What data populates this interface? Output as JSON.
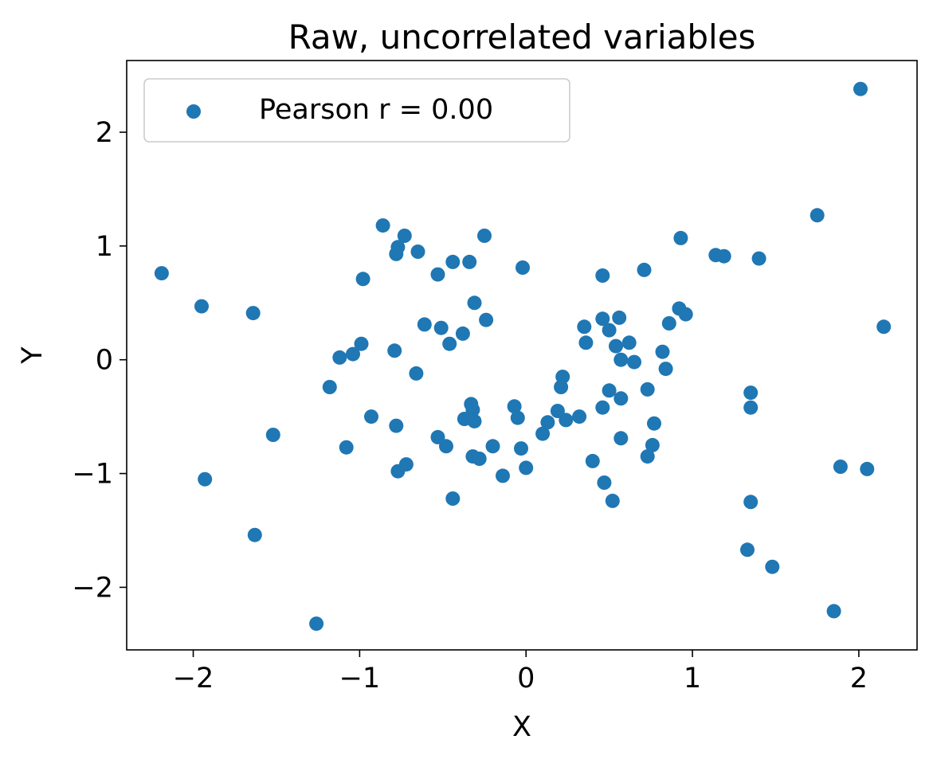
{
  "chart_data": {
    "type": "scatter",
    "title": "Raw, uncorrelated variables",
    "xlabel": "X",
    "ylabel": "Y",
    "xlim": [
      -2.4,
      2.35
    ],
    "ylim": [
      -2.55,
      2.63
    ],
    "xticks": [
      -2,
      -1,
      0,
      1,
      2
    ],
    "yticks": [
      -2,
      -1,
      0,
      1,
      2
    ],
    "xtick_labels": [
      "−2",
      "−1",
      "0",
      "1",
      "2"
    ],
    "ytick_labels": [
      "−2",
      "−1",
      "0",
      "1",
      "2"
    ],
    "grid": false,
    "legend_position": "top-left",
    "series": [
      {
        "name": "Pearson r = 0.00",
        "color": "#1f77b4",
        "points": [
          [
            2.01,
            2.38
          ],
          [
            1.75,
            1.27
          ],
          [
            -2.19,
            0.76
          ],
          [
            -1.95,
            0.47
          ],
          [
            -1.64,
            0.41
          ],
          [
            -1.93,
            -1.05
          ],
          [
            -1.52,
            -0.66
          ],
          [
            -1.63,
            -1.54
          ],
          [
            -1.26,
            -2.32
          ],
          [
            -0.86,
            1.18
          ],
          [
            -0.73,
            1.09
          ],
          [
            -0.77,
            0.99
          ],
          [
            -0.78,
            0.93
          ],
          [
            -0.65,
            0.95
          ],
          [
            -0.25,
            1.09
          ],
          [
            -0.44,
            0.86
          ],
          [
            -0.34,
            0.86
          ],
          [
            -0.53,
            0.75
          ],
          [
            -0.98,
            0.71
          ],
          [
            -0.02,
            0.81
          ],
          [
            -0.31,
            0.5
          ],
          [
            -0.24,
            0.35
          ],
          [
            -0.61,
            0.31
          ],
          [
            -0.51,
            0.28
          ],
          [
            -0.38,
            0.23
          ],
          [
            -0.46,
            0.14
          ],
          [
            -0.99,
            0.14
          ],
          [
            -1.04,
            0.05
          ],
          [
            -1.12,
            0.02
          ],
          [
            -0.79,
            0.08
          ],
          [
            -0.66,
            -0.12
          ],
          [
            -1.18,
            -0.24
          ],
          [
            -0.93,
            -0.5
          ],
          [
            -1.08,
            -0.77
          ],
          [
            -0.78,
            -0.58
          ],
          [
            -0.37,
            -0.52
          ],
          [
            -0.33,
            -0.39
          ],
          [
            -0.32,
            -0.44
          ],
          [
            -0.31,
            -0.54
          ],
          [
            -0.53,
            -0.68
          ],
          [
            -0.48,
            -0.76
          ],
          [
            -0.32,
            -0.85
          ],
          [
            -0.28,
            -0.87
          ],
          [
            -0.2,
            -0.76
          ],
          [
            -0.07,
            -0.41
          ],
          [
            -0.05,
            -0.51
          ],
          [
            -0.03,
            -0.78
          ],
          [
            -0.14,
            -1.02
          ],
          [
            -0.72,
            -0.92
          ],
          [
            -0.77,
            -0.98
          ],
          [
            -0.44,
            -1.22
          ],
          [
            0.0,
            -0.95
          ],
          [
            0.1,
            -0.65
          ],
          [
            0.13,
            -0.55
          ],
          [
            0.19,
            -0.45
          ],
          [
            0.21,
            -0.24
          ],
          [
            0.22,
            -0.15
          ],
          [
            0.24,
            -0.53
          ],
          [
            0.32,
            -0.5
          ],
          [
            0.35,
            0.29
          ],
          [
            0.36,
            0.15
          ],
          [
            0.4,
            -0.89
          ],
          [
            0.46,
            0.74
          ],
          [
            0.46,
            0.36
          ],
          [
            0.46,
            -0.42
          ],
          [
            0.47,
            -1.08
          ],
          [
            0.5,
            0.26
          ],
          [
            0.5,
            -0.27
          ],
          [
            0.52,
            -1.24
          ],
          [
            0.54,
            0.12
          ],
          [
            0.56,
            0.37
          ],
          [
            0.57,
            0.0
          ],
          [
            0.57,
            -0.34
          ],
          [
            0.57,
            -0.69
          ],
          [
            0.62,
            0.15
          ],
          [
            0.65,
            -0.02
          ],
          [
            0.71,
            0.79
          ],
          [
            0.73,
            -0.26
          ],
          [
            0.73,
            -0.85
          ],
          [
            0.76,
            -0.75
          ],
          [
            0.77,
            -0.56
          ],
          [
            0.82,
            0.07
          ],
          [
            0.84,
            -0.08
          ],
          [
            0.86,
            0.32
          ],
          [
            0.92,
            0.45
          ],
          [
            0.93,
            1.07
          ],
          [
            0.96,
            0.4
          ],
          [
            1.14,
            0.92
          ],
          [
            1.19,
            0.91
          ],
          [
            1.4,
            0.89
          ],
          [
            1.35,
            -0.29
          ],
          [
            1.35,
            -0.42
          ],
          [
            1.35,
            -1.25
          ],
          [
            1.33,
            -1.67
          ],
          [
            1.48,
            -1.82
          ],
          [
            1.89,
            -0.94
          ],
          [
            2.05,
            -0.96
          ],
          [
            2.15,
            0.29
          ],
          [
            1.85,
            -2.21
          ]
        ]
      }
    ]
  }
}
